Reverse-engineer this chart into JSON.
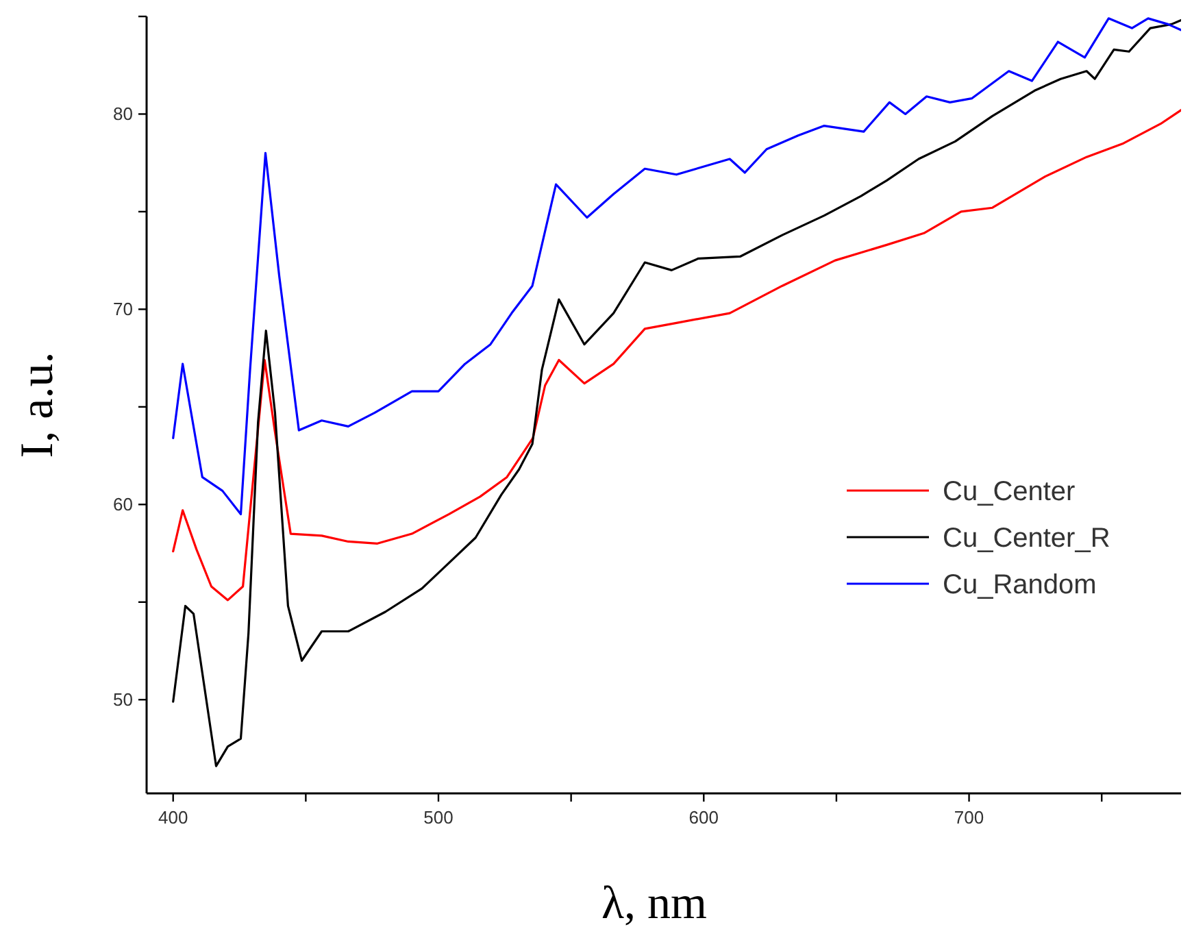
{
  "chart_data": {
    "type": "line",
    "xlabel": "λ, nm",
    "ylabel": "I, a.u.",
    "xlim": [
      390,
      783
    ],
    "ylim": [
      45.2,
      85
    ],
    "xticks": [
      400,
      {
        "value": 450,
        "label": null
      },
      500,
      {
        "value": 550,
        "label": null
      },
      600,
      {
        "value": 650,
        "label": null
      },
      700,
      {
        "value": 750,
        "label": null
      }
    ],
    "yticks": [
      50,
      {
        "value": 55,
        "label": null
      },
      60,
      {
        "value": 65,
        "label": null
      },
      70,
      {
        "value": 75,
        "label": null
      },
      80,
      {
        "value": 85,
        "label": null
      }
    ],
    "grid": false,
    "legend": "right",
    "line_style": "solid",
    "series": [
      {
        "name": "Cu_Center",
        "color": "#ff0000",
        "x": [
          400,
          403.6,
          408.8,
          414.4,
          420.6,
          426.3,
          429.4,
          434.5,
          438.4,
          444.3,
          456,
          466,
          477,
          490,
          503.9,
          515.7,
          525.8,
          535.6,
          540.2,
          545.4,
          555,
          566,
          577.8,
          589.7,
          609.8,
          629.6,
          649.5,
          669,
          683,
          697,
          708.8,
          728.7,
          744.3,
          758.2,
          772.2,
          781
        ],
        "values": [
          57.6,
          59.7,
          57.7,
          55.8,
          55.1,
          55.8,
          60.2,
          67.4,
          63.7,
          58.5,
          58.4,
          58.1,
          58.0,
          58.5,
          59.5,
          60.4,
          61.4,
          63.4,
          66.1,
          67.4,
          66.2,
          67.2,
          69.0,
          69.3,
          69.8,
          71.2,
          72.5,
          73.3,
          73.9,
          75.0,
          75.2,
          76.8,
          77.8,
          78.5,
          79.5,
          80.3
        ]
      },
      {
        "name": "Cu_Center_R",
        "color": "#000000",
        "x": [
          400,
          404.6,
          407.7,
          416.2,
          420.6,
          425.5,
          428.4,
          432,
          435,
          438.4,
          443.3,
          448.5,
          456,
          466,
          480,
          493.8,
          503.9,
          514,
          523.7,
          530.4,
          535.4,
          539,
          545.4,
          555,
          566,
          577.8,
          587.9,
          598,
          613.7,
          629.6,
          645.4,
          659.3,
          669,
          681,
          694.8,
          708.8,
          724.7,
          734.5,
          744.3,
          747.4,
          754.6,
          760.3,
          768.3,
          776.3,
          781.5
        ],
        "values": [
          49.9,
          54.8,
          54.4,
          46.6,
          47.6,
          48.0,
          53.4,
          64.2,
          68.9,
          64.7,
          54.8,
          52.0,
          53.5,
          53.5,
          54.5,
          55.7,
          57.0,
          58.3,
          60.5,
          61.8,
          63.1,
          66.9,
          70.5,
          68.2,
          69.8,
          72.4,
          72.0,
          72.6,
          72.7,
          73.8,
          74.8,
          75.8,
          76.6,
          77.7,
          78.6,
          79.9,
          81.2,
          81.8,
          82.2,
          81.8,
          83.3,
          83.2,
          84.4,
          84.6,
          84.9
        ]
      },
      {
        "name": "Cu_Random",
        "color": "#0000ff",
        "x": [
          400,
          403.6,
          411,
          418.6,
          425.5,
          429,
          434.8,
          440,
          447.4,
          456,
          466,
          476,
          490,
          500,
          510,
          519.6,
          527.6,
          535.4,
          544.3,
          556,
          566,
          577.8,
          589.7,
          609.8,
          615.5,
          623.7,
          635.6,
          645.4,
          660.3,
          670,
          676,
          684,
          692.8,
          701,
          715,
          723.7,
          733.5,
          743.6,
          752.6,
          761.4,
          767.5,
          775,
          780
        ],
        "values": [
          63.4,
          67.2,
          61.4,
          60.7,
          59.5,
          66.9,
          78.0,
          71.7,
          63.8,
          64.3,
          64.0,
          64.7,
          65.8,
          65.8,
          67.2,
          68.2,
          69.8,
          71.2,
          76.4,
          74.7,
          75.9,
          77.2,
          76.9,
          77.7,
          77.0,
          78.2,
          78.9,
          79.4,
          79.1,
          80.6,
          80.0,
          80.9,
          80.6,
          80.8,
          82.2,
          81.7,
          83.7,
          82.9,
          84.9,
          84.4,
          84.9,
          84.6,
          84.3
        ]
      }
    ]
  }
}
